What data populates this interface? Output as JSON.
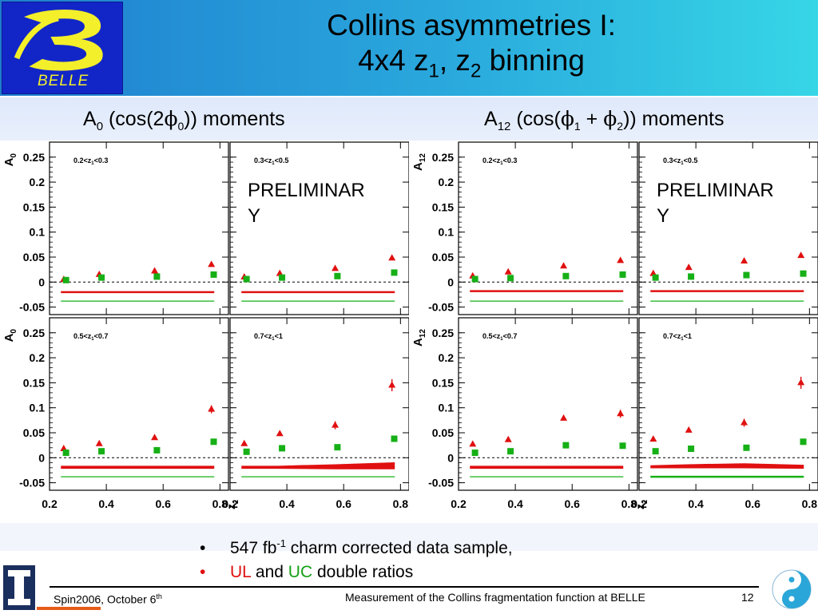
{
  "slide": {
    "title_line1": "Collins asymmetries I:",
    "title_line2_a": "4x4 z",
    "title_line2_sub1": "1",
    "title_line2_b": ", z",
    "title_line2_sub2": "2",
    "title_line2_c": " binning",
    "logo_text": "BELLE",
    "left_section": {
      "a": "A",
      "sub": "0",
      "b": " (cos(2",
      "phi": "ϕ",
      "phisub": "0",
      "c": ")) moments"
    },
    "right_section": {
      "a": "A",
      "sub": "12",
      "b": " (cos(",
      "phi1": "ϕ",
      "phi1sub": "1",
      "plus": " + ",
      "phi2": "ϕ",
      "phi2sub": "2",
      "c": ")) moments"
    },
    "bullets": [
      {
        "pre": "547 fb",
        "sup": "-1",
        "post": " charm corrected data sample,"
      },
      {
        "ul": "UL",
        "and": " and ",
        "uc": "UC",
        "post": " double ratios"
      }
    ],
    "footer_left": "Spin2006, October 6",
    "footer_left_sup": "th",
    "footer_mid": "Measurement of the Collins fragmentation function at BELLE",
    "page_number": "12"
  },
  "colors": {
    "ul": "#e01010",
    "uc": "#16b016",
    "header_start": "#1f7ecf",
    "header_end": "#36d6e6"
  },
  "chart_data": [
    {
      "type": "scatter",
      "ylabel": "A",
      "ylabel_sub": "0",
      "xlabel": "z",
      "xlabel_sub": "2",
      "ylim": [
        -0.065,
        0.28
      ],
      "xlim": [
        0.2,
        0.83
      ],
      "yticks": [
        "0.25",
        "0.2",
        "0.15",
        "0.1",
        "0.05",
        "0",
        "-0.05"
      ],
      "ytick_values": [
        0.25,
        0.2,
        0.15,
        0.1,
        0.05,
        0,
        -0.05
      ],
      "xticks": [
        "0.2",
        "0.4",
        "0.6",
        "0.8"
      ],
      "xtick_values": [
        0.2,
        0.4,
        0.6,
        0.8
      ],
      "preliminary": "PRELIMINAR\nY",
      "panels": [
        {
          "label": "0.2<z",
          "label_sub": "1",
          "label_end": "<0.3",
          "x": [
            0.25,
            0.375,
            0.57,
            0.77
          ],
          "ul": [
            0.005,
            0.015,
            0.022,
            0.035
          ],
          "ul_err": [
            0.001,
            0.002,
            0.002,
            0.003
          ],
          "uc": [
            0.004,
            0.009,
            0.011,
            0.015
          ],
          "uc_err": [
            0.001,
            0.001,
            0.002,
            0.002
          ],
          "ul_band": [
            -0.02,
            -0.02,
            -0.02,
            -0.02
          ],
          "ul_band_w": [
            0.002,
            0.002,
            0.002,
            0.002
          ],
          "uc_band": [
            -0.038,
            -0.038,
            -0.038,
            -0.038
          ],
          "uc_band_w": [
            0.001,
            0.001,
            0.001,
            0.001
          ]
        },
        {
          "label": "0.3<z",
          "label_sub": "1",
          "label_end": "<0.5",
          "x": [
            0.25,
            0.375,
            0.57,
            0.77
          ],
          "ul": [
            0.01,
            0.017,
            0.027,
            0.048
          ],
          "ul_err": [
            0.001,
            0.002,
            0.002,
            0.003
          ],
          "uc": [
            0.006,
            0.009,
            0.012,
            0.019
          ],
          "uc_err": [
            0.001,
            0.001,
            0.002,
            0.002
          ],
          "ul_band": [
            -0.02,
            -0.02,
            -0.02,
            -0.02
          ],
          "ul_band_w": [
            0.002,
            0.002,
            0.002,
            0.002
          ],
          "uc_band": [
            -0.038,
            -0.038,
            -0.038,
            -0.038
          ],
          "uc_band_w": [
            0.001,
            0.001,
            0.001,
            0.001
          ]
        },
        {
          "label": "0.5<z",
          "label_sub": "1",
          "label_end": "<0.7",
          "x": [
            0.25,
            0.375,
            0.57,
            0.77
          ],
          "ul": [
            0.018,
            0.028,
            0.04,
            0.097
          ],
          "ul_err": [
            0.002,
            0.002,
            0.003,
            0.008
          ],
          "uc": [
            0.01,
            0.013,
            0.015,
            0.032
          ],
          "uc_err": [
            0.001,
            0.001,
            0.002,
            0.003
          ],
          "ul_band": [
            -0.019,
            -0.019,
            -0.019,
            -0.019
          ],
          "ul_band_w": [
            0.003,
            0.003,
            0.003,
            0.003
          ],
          "uc_band": [
            -0.038,
            -0.038,
            -0.038,
            -0.038
          ],
          "uc_band_w": [
            0.001,
            0.001,
            0.001,
            0.001
          ]
        },
        {
          "label": "0.7<z",
          "label_sub": "1",
          "label_end": "<1",
          "x": [
            0.25,
            0.375,
            0.57,
            0.77
          ],
          "ul": [
            0.028,
            0.048,
            0.065,
            0.145
          ],
          "ul_err": [
            0.002,
            0.003,
            0.008,
            0.012
          ],
          "uc": [
            0.012,
            0.019,
            0.021,
            0.038
          ],
          "uc_err": [
            0.001,
            0.002,
            0.002,
            0.003
          ],
          "ul_band": [
            -0.019,
            -0.019,
            -0.018,
            -0.016
          ],
          "ul_band_w": [
            0.003,
            0.003,
            0.005,
            0.007
          ],
          "uc_band": [
            -0.038,
            -0.038,
            -0.038,
            -0.038
          ],
          "uc_band_w": [
            0.001,
            0.001,
            0.001,
            0.001
          ]
        }
      ]
    },
    {
      "type": "scatter",
      "ylabel": "A",
      "ylabel_sub": "12",
      "xlabel": "z",
      "xlabel_sub": "2",
      "ylim": [
        -0.065,
        0.28
      ],
      "xlim": [
        0.2,
        0.83
      ],
      "yticks": [
        "0.25",
        "0.2",
        "0.15",
        "0.1",
        "0.05",
        "0",
        "-0.05"
      ],
      "ytick_values": [
        0.25,
        0.2,
        0.15,
        0.1,
        0.05,
        0,
        -0.05
      ],
      "xticks": [
        "0.2",
        "0.4",
        "0.6",
        "0.8"
      ],
      "xtick_values": [
        0.2,
        0.4,
        0.6,
        0.8
      ],
      "preliminary": "PRELIMINAR\nY",
      "panels": [
        {
          "label": "0.2<z",
          "label_sub": "1",
          "label_end": "<0.3",
          "x": [
            0.25,
            0.375,
            0.57,
            0.77
          ],
          "ul": [
            0.012,
            0.02,
            0.032,
            0.043
          ],
          "ul_err": [
            0.001,
            0.002,
            0.002,
            0.003
          ],
          "uc": [
            0.006,
            0.008,
            0.012,
            0.015
          ],
          "uc_err": [
            0.001,
            0.001,
            0.002,
            0.002
          ],
          "ul_band": [
            -0.018,
            -0.018,
            -0.018,
            -0.018
          ],
          "ul_band_w": [
            0.002,
            0.002,
            0.002,
            0.002
          ],
          "uc_band": [
            -0.038,
            -0.038,
            -0.038,
            -0.038
          ],
          "uc_band_w": [
            0.001,
            0.001,
            0.001,
            0.001
          ]
        },
        {
          "label": "0.3<z",
          "label_sub": "1",
          "label_end": "<0.5",
          "x": [
            0.25,
            0.375,
            0.57,
            0.77
          ],
          "ul": [
            0.017,
            0.029,
            0.042,
            0.053
          ],
          "ul_err": [
            0.001,
            0.002,
            0.002,
            0.003
          ],
          "uc": [
            0.009,
            0.011,
            0.014,
            0.017
          ],
          "uc_err": [
            0.001,
            0.001,
            0.002,
            0.002
          ],
          "ul_band": [
            -0.018,
            -0.018,
            -0.018,
            -0.018
          ],
          "ul_band_w": [
            0.002,
            0.002,
            0.002,
            0.002
          ],
          "uc_band": [
            -0.038,
            -0.038,
            -0.038,
            -0.038
          ],
          "uc_band_w": [
            0.001,
            0.001,
            0.001,
            0.001
          ]
        },
        {
          "label": "0.5<z",
          "label_sub": "1",
          "label_end": "<0.7",
          "x": [
            0.25,
            0.375,
            0.57,
            0.77
          ],
          "ul": [
            0.027,
            0.036,
            0.079,
            0.088
          ],
          "ul_err": [
            0.002,
            0.003,
            0.004,
            0.008
          ],
          "uc": [
            0.01,
            0.013,
            0.025,
            0.024
          ],
          "uc_err": [
            0.001,
            0.001,
            0.002,
            0.003
          ],
          "ul_band": [
            -0.019,
            -0.019,
            -0.019,
            -0.019
          ],
          "ul_band_w": [
            0.003,
            0.003,
            0.003,
            0.003
          ],
          "uc_band": [
            -0.038,
            -0.038,
            -0.038,
            -0.038
          ],
          "uc_band_w": [
            0.001,
            0.001,
            0.001,
            0.001
          ]
        },
        {
          "label": "0.7<z",
          "label_sub": "1",
          "label_end": "<1",
          "x": [
            0.25,
            0.375,
            0.57,
            0.77
          ],
          "ul": [
            0.037,
            0.055,
            0.07,
            0.15
          ],
          "ul_err": [
            0.002,
            0.003,
            0.008,
            0.012
          ],
          "uc": [
            0.013,
            0.018,
            0.02,
            0.032
          ],
          "uc_err": [
            0.001,
            0.002,
            0.002,
            0.003
          ],
          "ul_band": [
            -0.018,
            -0.017,
            -0.016,
            -0.018
          ],
          "ul_band_w": [
            0.003,
            0.004,
            0.005,
            0.004
          ],
          "uc_band": [
            -0.038,
            -0.038,
            -0.038,
            -0.038
          ],
          "uc_band_w": [
            0.002,
            0.002,
            0.002,
            0.002
          ]
        }
      ]
    }
  ]
}
